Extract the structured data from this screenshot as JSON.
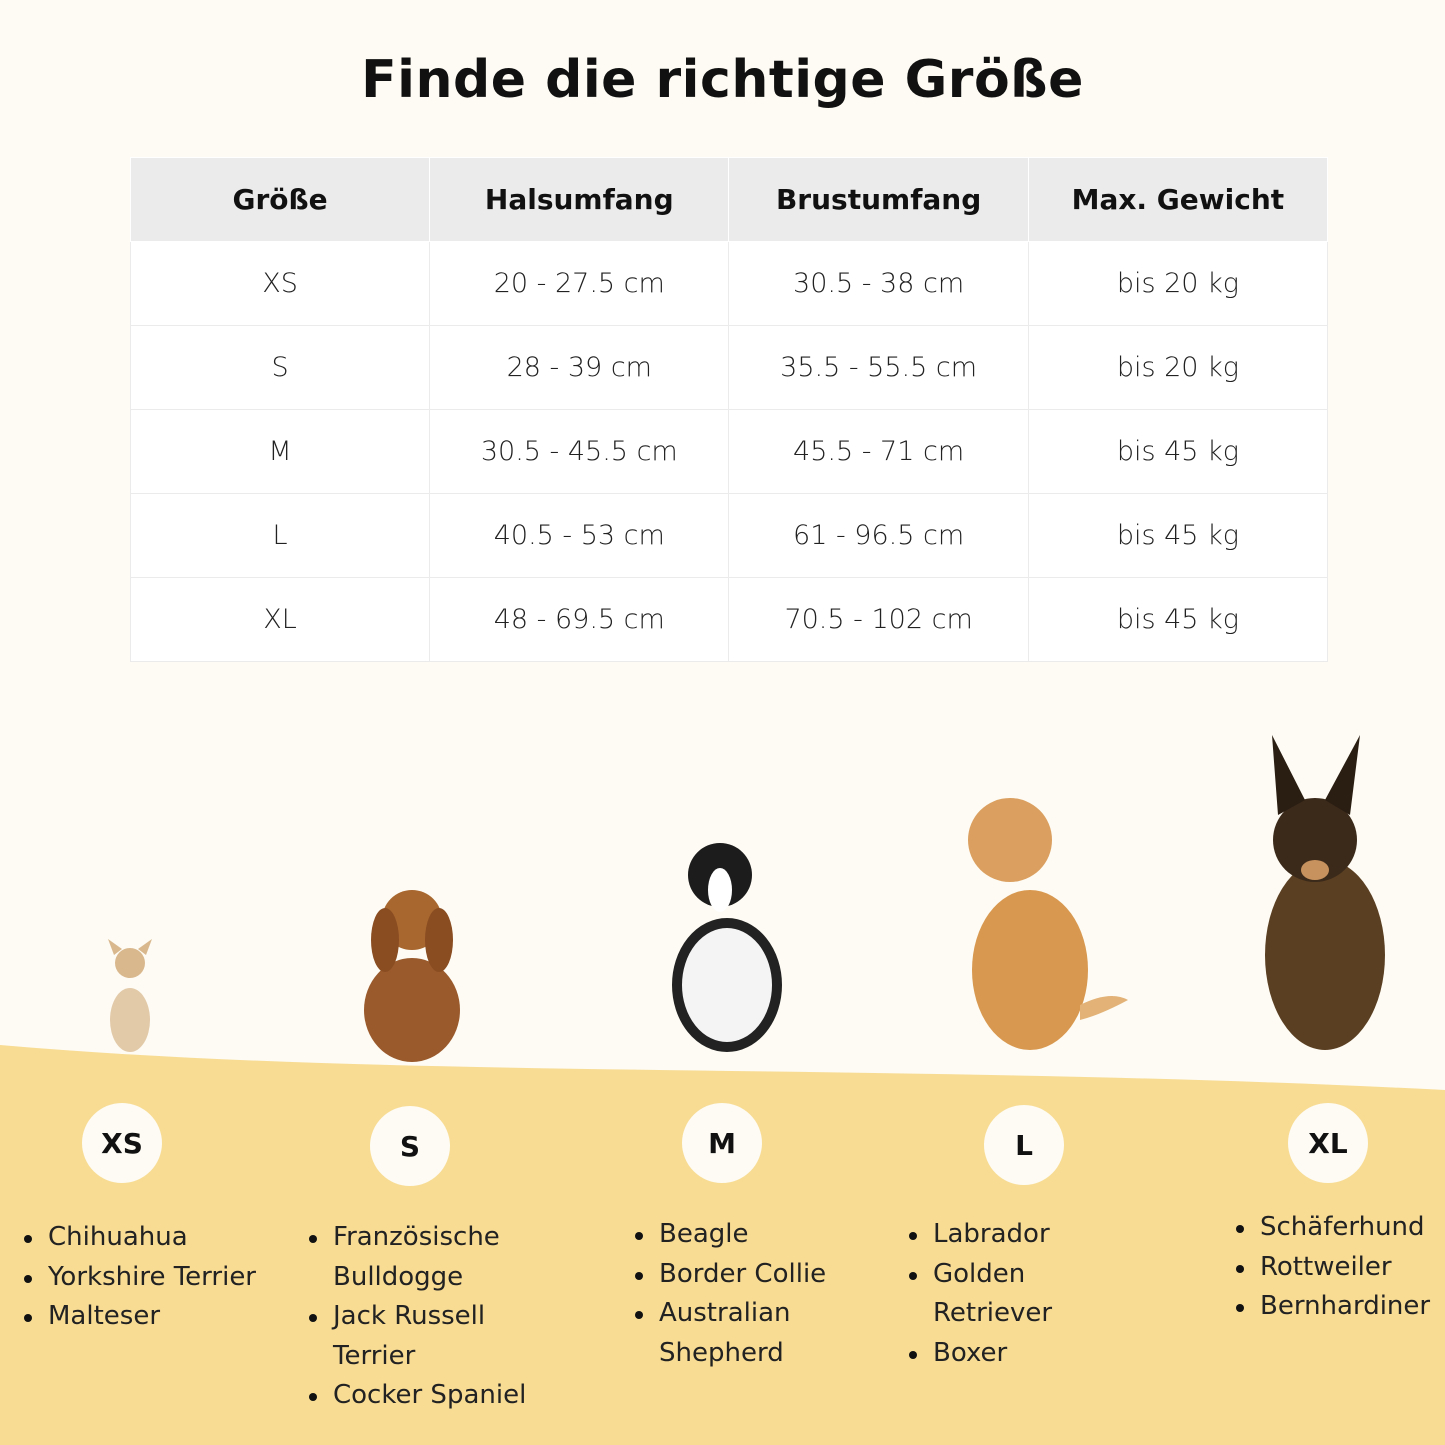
{
  "title": "Finde die richtige Größe",
  "colors": {
    "background": "#fdfbf3",
    "wave": "#f8dc94",
    "header": "#ebebeb"
  },
  "table": {
    "headers": [
      "Größe",
      "Halsumfang",
      "Brustumfang",
      "Max. Gewicht"
    ],
    "rows": [
      [
        "XS",
        "20 - 27.5 cm",
        "30.5 - 38 cm",
        "bis 20 kg"
      ],
      [
        "S",
        "28 - 39 cm",
        "35.5 - 55.5 cm",
        "bis 20 kg"
      ],
      [
        "M",
        "30.5 - 45.5 cm",
        "45.5 - 71 cm",
        "bis 45 kg"
      ],
      [
        "L",
        "40.5 - 53 cm",
        "61 - 96.5 cm",
        "bis 45 kg"
      ],
      [
        "XL",
        "48 - 69.5 cm",
        "70.5 - 102 cm",
        "bis 45 kg"
      ]
    ]
  },
  "sizes": [
    {
      "label": "XS",
      "breeds": [
        "Chihuahua",
        "Yorkshire Terrier",
        "Malteser"
      ]
    },
    {
      "label": "S",
      "breeds": [
        "Französische Bulldogge",
        "Jack Russell Terrier",
        "Cocker Spaniel"
      ]
    },
    {
      "label": "M",
      "breeds": [
        "Beagle",
        "Border Collie",
        "Australian Shepherd"
      ]
    },
    {
      "label": "L",
      "breeds": [
        "Labrador",
        "Golden Retriever",
        "Boxer"
      ]
    },
    {
      "label": "XL",
      "breeds": [
        "Schäferhund",
        "Rottweiler",
        "Bernhardiner"
      ]
    }
  ]
}
